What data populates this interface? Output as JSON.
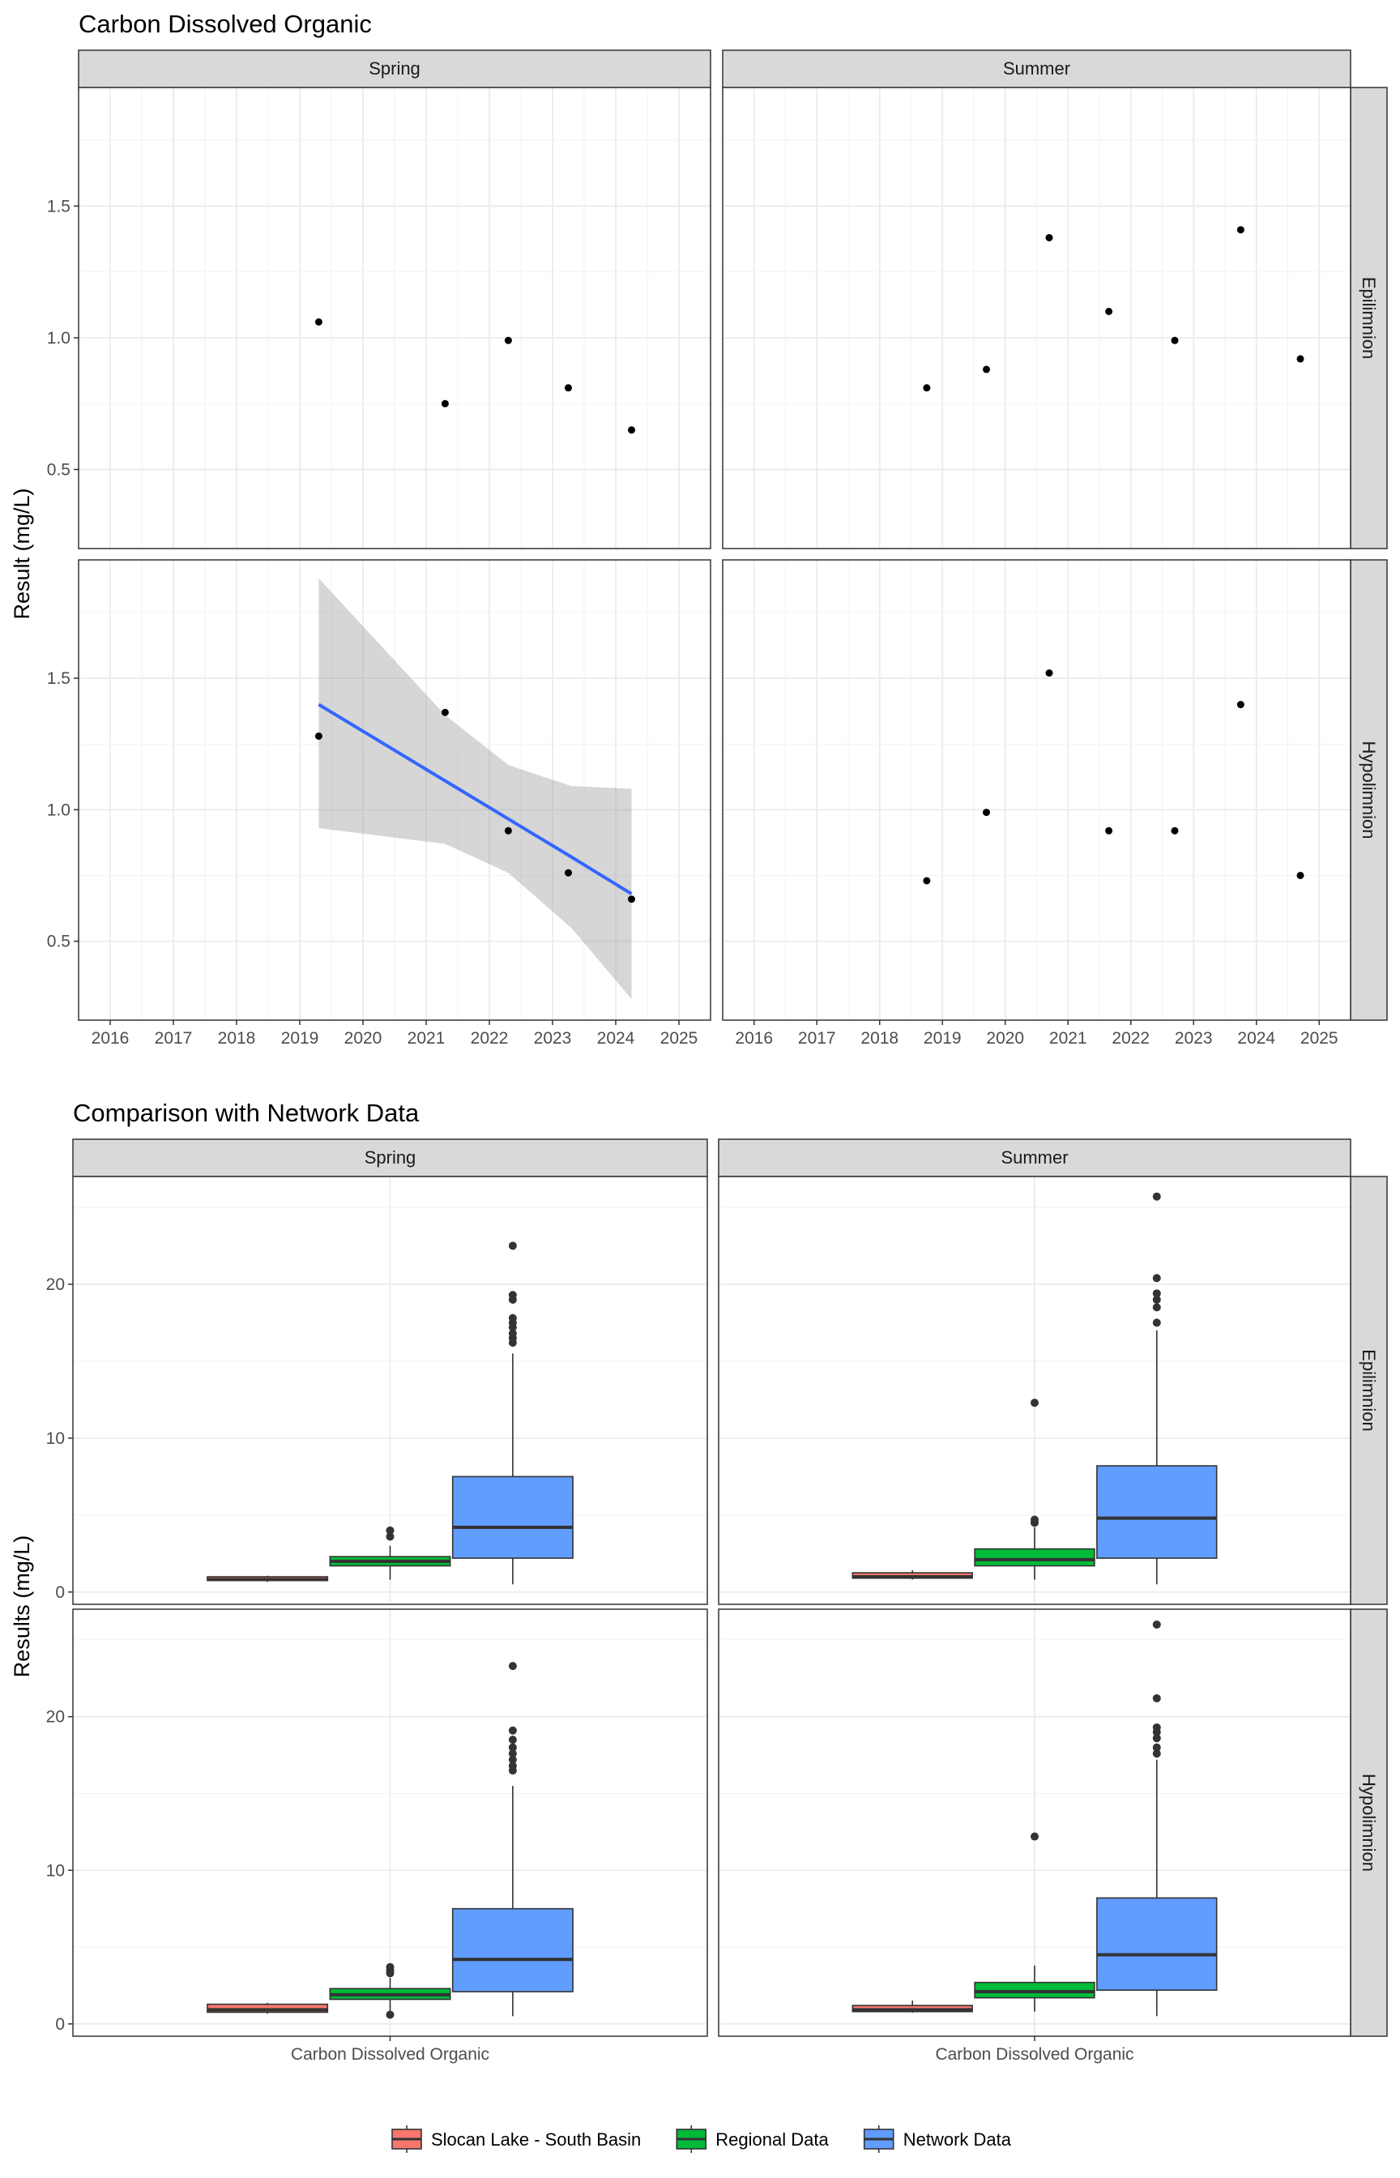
{
  "chart_data": [
    {
      "type": "scatter",
      "title": "Carbon Dissolved Organic",
      "ylabel": "Result (mg/L)",
      "xlabel": "",
      "x_ticks": [
        "2016",
        "2017",
        "2018",
        "2019",
        "2020",
        "2021",
        "2022",
        "2023",
        "2024",
        "2025"
      ],
      "y_ticks": [
        "0.5",
        "1.0",
        "1.5"
      ],
      "xlim": [
        2015.5,
        2025.5
      ],
      "ylim": [
        0.2,
        1.95
      ],
      "columns": [
        "Spring",
        "Summer"
      ],
      "rows": [
        "Epilimnion",
        "Hypolimnion"
      ],
      "grid": true,
      "panels": [
        {
          "column": "Spring",
          "row": "Epilimnion",
          "points": [
            [
              2019.3,
              1.06
            ],
            [
              2021.3,
              0.75
            ],
            [
              2022.3,
              0.99
            ],
            [
              2023.25,
              0.81
            ],
            [
              2024.25,
              0.65
            ]
          ]
        },
        {
          "column": "Summer",
          "row": "Epilimnion",
          "points": [
            [
              2018.75,
              0.81
            ],
            [
              2019.7,
              0.88
            ],
            [
              2020.7,
              1.38
            ],
            [
              2021.65,
              1.1
            ],
            [
              2022.7,
              0.99
            ],
            [
              2023.75,
              1.41
            ],
            [
              2024.7,
              0.92
            ]
          ]
        },
        {
          "column": "Spring",
          "row": "Hypolimnion",
          "points": [
            [
              2019.3,
              1.28
            ],
            [
              2021.3,
              1.37
            ],
            [
              2022.3,
              0.92
            ],
            [
              2023.25,
              0.76
            ],
            [
              2024.25,
              0.66
            ]
          ],
          "trend": {
            "color": "#3366FF",
            "x": [
              2019.3,
              2020.3,
              2021.3,
              2022.3,
              2023.3,
              2024.25
            ],
            "y": [
              1.4,
              1.255,
              1.11,
              0.965,
              0.82,
              0.68
            ],
            "ci_low": [
              0.93,
              0.9,
              0.87,
              0.76,
              0.55,
              0.28
            ],
            "ci_high": [
              1.88,
              1.62,
              1.36,
              1.17,
              1.09,
              1.08
            ]
          }
        },
        {
          "column": "Summer",
          "row": "Hypolimnion",
          "points": [
            [
              2018.75,
              0.73
            ],
            [
              2019.7,
              0.99
            ],
            [
              2020.7,
              1.52
            ],
            [
              2021.65,
              0.92
            ],
            [
              2022.7,
              0.92
            ],
            [
              2023.75,
              1.4
            ],
            [
              2024.7,
              0.75
            ]
          ]
        }
      ]
    },
    {
      "type": "box",
      "title": "Comparison with Network Data",
      "ylabel": "Results (mg/L)",
      "xlabel": "",
      "categories": [
        "Carbon Dissolved Organic"
      ],
      "y_ticks": [
        "0",
        "10",
        "20"
      ],
      "ylim": [
        -0.8,
        27
      ],
      "columns": [
        "Spring",
        "Summer"
      ],
      "rows": [
        "Epilimnion",
        "Hypolimnion"
      ],
      "grid": true,
      "legend_position": "bottom",
      "legend": [
        {
          "name": "Slocan Lake - South Basin",
          "color": "#F8766D"
        },
        {
          "name": "Regional Data",
          "color": "#00BA38"
        },
        {
          "name": "Network Data",
          "color": "#619CFF"
        }
      ],
      "panels": [
        {
          "column": "Spring",
          "row": "Epilimnion",
          "boxes": [
            {
              "group": "Slocan Lake - South Basin",
              "min": 0.65,
              "q1": 0.75,
              "median": 0.81,
              "q3": 0.99,
              "max": 1.06,
              "outliers": []
            },
            {
              "group": "Regional Data",
              "min": 0.8,
              "q1": 1.7,
              "median": 2.0,
              "q3": 2.3,
              "max": 3.0,
              "outliers": [
                3.6,
                4.0
              ]
            },
            {
              "group": "Network Data",
              "min": 0.5,
              "q1": 2.2,
              "median": 4.2,
              "q3": 7.5,
              "max": 15.5,
              "outliers": [
                16.2,
                16.5,
                16.8,
                17.2,
                17.5,
                17.8,
                19.0,
                19.3,
                22.5
              ]
            }
          ]
        },
        {
          "column": "Summer",
          "row": "Epilimnion",
          "boxes": [
            {
              "group": "Slocan Lake - South Basin",
              "min": 0.81,
              "q1": 0.9,
              "median": 0.99,
              "q3": 1.25,
              "max": 1.41,
              "outliers": []
            },
            {
              "group": "Regional Data",
              "min": 0.8,
              "q1": 1.7,
              "median": 2.1,
              "q3": 2.8,
              "max": 4.2,
              "outliers": [
                4.5,
                4.7,
                12.3
              ]
            },
            {
              "group": "Network Data",
              "min": 0.5,
              "q1": 2.2,
              "median": 4.8,
              "q3": 8.2,
              "max": 17.0,
              "outliers": [
                17.5,
                18.5,
                19.0,
                19.4,
                20.4,
                25.7
              ]
            }
          ]
        },
        {
          "column": "Spring",
          "row": "Hypolimnion",
          "boxes": [
            {
              "group": "Slocan Lake - South Basin",
              "min": 0.66,
              "q1": 0.76,
              "median": 0.92,
              "q3": 1.28,
              "max": 1.37,
              "outliers": []
            },
            {
              "group": "Regional Data",
              "min": 0.8,
              "q1": 1.6,
              "median": 1.9,
              "q3": 2.3,
              "max": 3.0,
              "outliers": [
                0.6,
                3.3,
                3.5,
                3.7
              ]
            },
            {
              "group": "Network Data",
              "min": 0.5,
              "q1": 2.1,
              "median": 4.2,
              "q3": 7.5,
              "max": 15.5,
              "outliers": [
                16.5,
                16.8,
                17.2,
                17.6,
                18.0,
                18.5,
                19.1,
                23.3
              ]
            }
          ]
        },
        {
          "column": "Summer",
          "row": "Hypolimnion",
          "boxes": [
            {
              "group": "Slocan Lake - South Basin",
              "min": 0.73,
              "q1": 0.8,
              "median": 0.92,
              "q3": 1.2,
              "max": 1.52,
              "outliers": []
            },
            {
              "group": "Regional Data",
              "min": 0.8,
              "q1": 1.7,
              "median": 2.1,
              "q3": 2.7,
              "max": 3.8,
              "outliers": [
                12.2
              ]
            },
            {
              "group": "Network Data",
              "min": 0.5,
              "q1": 2.2,
              "median": 4.5,
              "q3": 8.2,
              "max": 17.2,
              "outliers": [
                17.6,
                18.0,
                18.6,
                19.0,
                19.3,
                21.2,
                26.0
              ]
            }
          ]
        }
      ]
    }
  ]
}
